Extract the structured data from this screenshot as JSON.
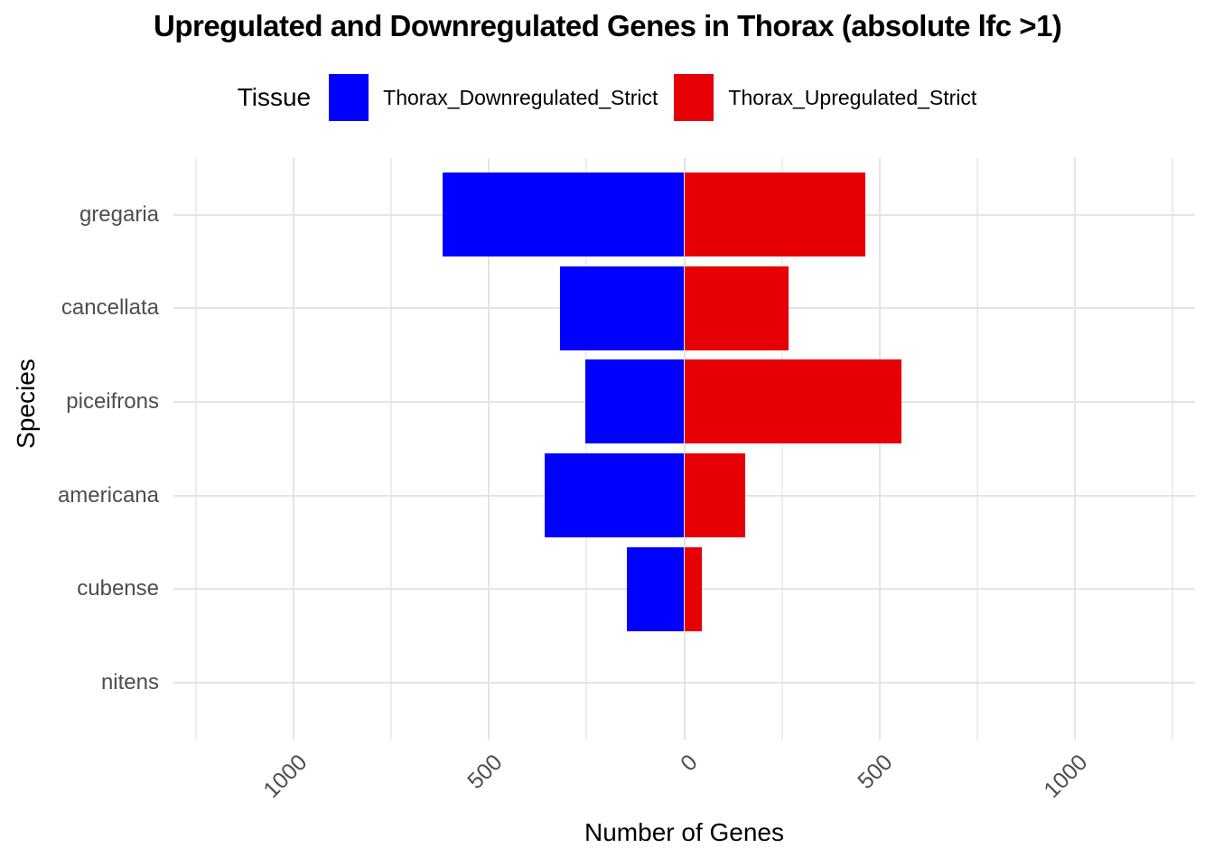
{
  "title": "Upregulated and Downregulated Genes in Thorax (absolute lfc >1)",
  "legend": {
    "title": "Tissue",
    "items": [
      {
        "label": "Thorax_Downregulated_Strict",
        "color": "#0000FF"
      },
      {
        "label": "Thorax_Upregulated_Strict",
        "color": "#E60005"
      }
    ]
  },
  "chart_data": {
    "type": "bar",
    "orientation": "horizontal-diverging",
    "title": "Upregulated and Downregulated Genes in Thorax (absolute lfc >1)",
    "xlabel": "Number of Genes",
    "ylabel": "Species",
    "categories": [
      "gregaria",
      "cancellata",
      "piceifrons",
      "americana",
      "cubense",
      "nitens"
    ],
    "series": [
      {
        "name": "Thorax_Downregulated_Strict",
        "direction": "left",
        "color": "#0000FF",
        "values": [
          620,
          318,
          254,
          357,
          147,
          0
        ]
      },
      {
        "name": "Thorax_Upregulated_Strict",
        "direction": "right",
        "color": "#E60005",
        "values": [
          465,
          268,
          557,
          156,
          46,
          0
        ]
      }
    ],
    "x_ticks": [
      -1000,
      -500,
      0,
      500,
      1000
    ],
    "x_tick_labels": [
      "1000",
      "500",
      "0",
      "500",
      "1000"
    ],
    "x_minor_ticks": [
      -1250,
      -750,
      -250,
      250,
      750,
      1250
    ],
    "xlim": [
      -1309,
      1309
    ],
    "grid": true,
    "legend_position": "top",
    "colors": {
      "grid_major": "#E4E4E4",
      "grid_minor": "#EDEDED",
      "axis_text": "#4D4D4D",
      "background": "#FFFFFF"
    }
  }
}
